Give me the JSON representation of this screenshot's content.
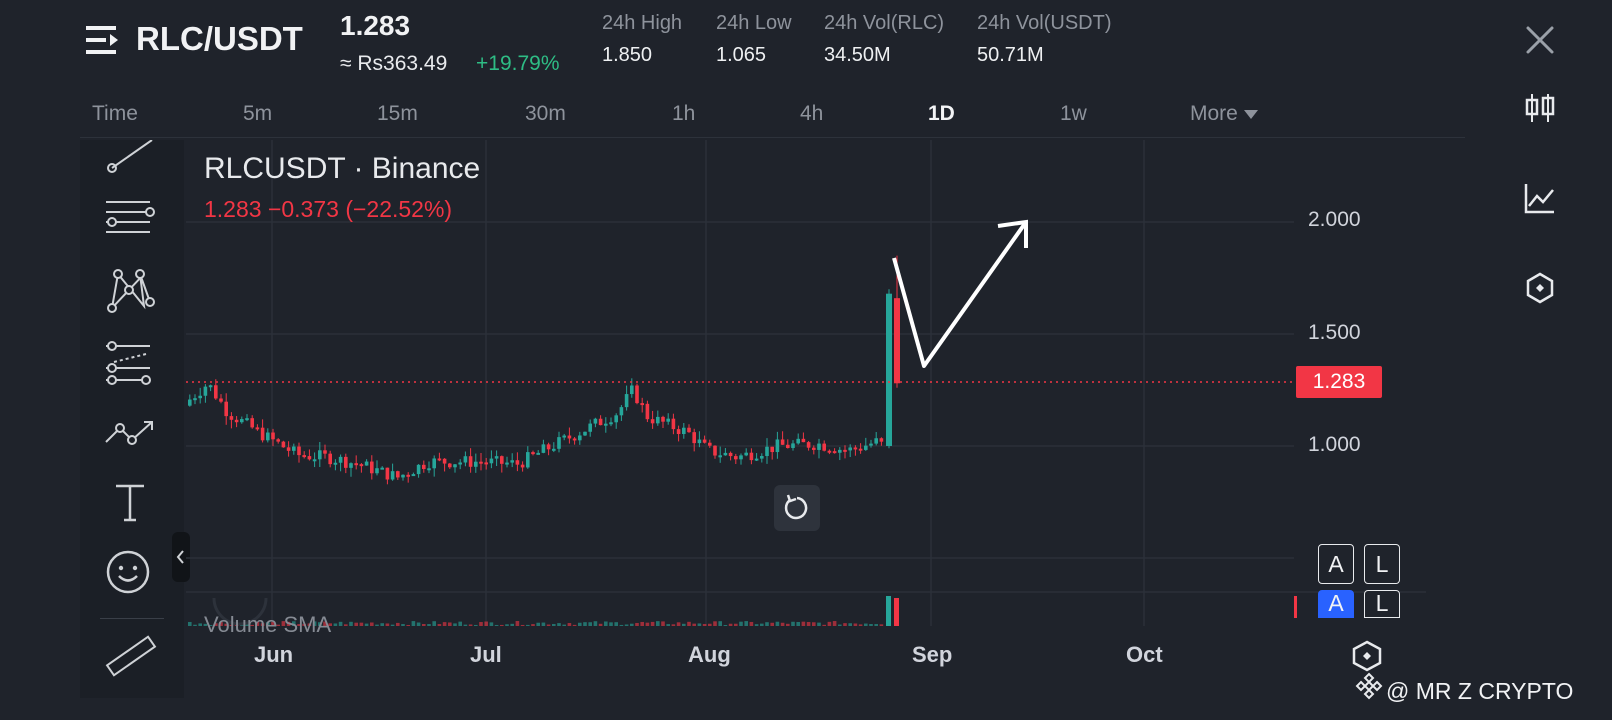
{
  "header": {
    "pair": "RLC/USDT",
    "last_price": "1.283",
    "fiat_price": "≈ Rs363.49",
    "change_pct": "+19.79%",
    "stats": [
      {
        "label": "24h High",
        "value": "1.850"
      },
      {
        "label": "24h Low",
        "value": "1.065"
      },
      {
        "label": "24h Vol(RLC)",
        "value": "34.50M"
      },
      {
        "label": "24h Vol(USDT)",
        "value": "50.71M"
      }
    ]
  },
  "intervals": {
    "items": [
      "Time",
      "5m",
      "15m",
      "30m",
      "1h",
      "4h",
      "1D",
      "1w"
    ],
    "active": "1D",
    "more_label": "More"
  },
  "chart": {
    "symbol_title": "RLCUSDT · Binance",
    "ohlc_line": "1.283  −0.373 (−22.52%)",
    "price_levels": [
      "2.000",
      "1.500",
      "1.000"
    ],
    "current_price_tag": "1.283",
    "months": [
      "Jun",
      "Jul",
      "Aug",
      "Sep",
      "Oct"
    ],
    "volume_label": "Volume SMA",
    "al_buttons": [
      "A",
      "L"
    ],
    "colors": {
      "up": "#26a69a",
      "down": "#f23645",
      "grid": "#2b3039"
    }
  },
  "watermark": {
    "text": "@ MR Z CRYPTO"
  }
}
